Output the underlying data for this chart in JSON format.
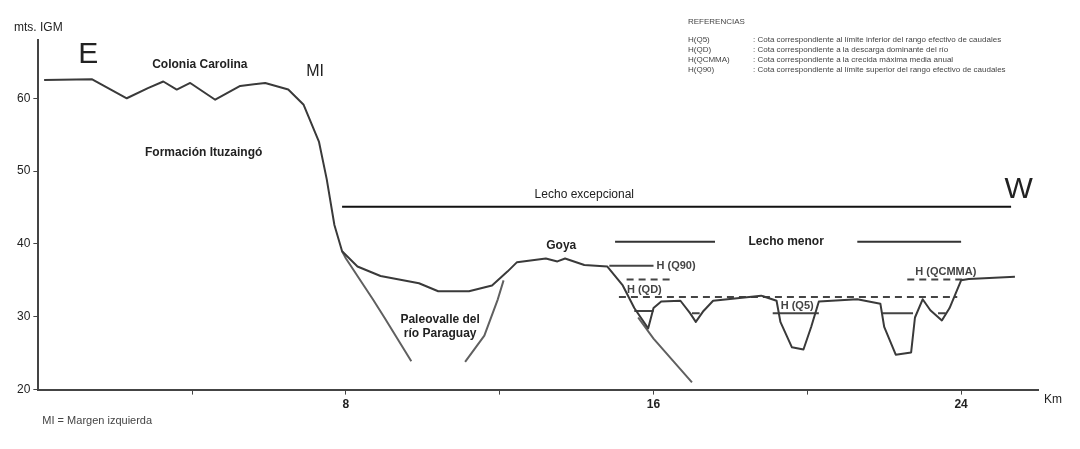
{
  "chart_data": {
    "type": "line",
    "ylabel": "mts. IGM",
    "xlabel": "Km",
    "xlim": [
      0,
      26
    ],
    "ylim": [
      20,
      68
    ],
    "xticks": [
      {
        "value": 4,
        "label": null
      },
      8,
      {
        "value": 12,
        "label": null
      },
      16,
      {
        "value": 20,
        "label": null
      },
      24
    ],
    "yticks": [
      20,
      30,
      40,
      50,
      60
    ],
    "grid": false,
    "legend": false,
    "marker": "none",
    "series": [
      {
        "color": "#3a3a3a",
        "x": [
          0.15,
          1.4,
          2.3,
          2.85,
          3.25,
          3.6,
          3.95,
          4.6,
          5.25,
          5.9,
          6.5,
          6.9,
          7.3,
          7.5,
          7.7,
          7.9,
          8.3,
          8.9,
          9.9,
          10.4,
          11.2,
          11.8,
          12.2,
          12.45,
          13.2,
          13.5,
          13.7,
          14.2,
          14.8,
          15.2,
          15.5,
          15.86,
          16.0,
          16.2,
          16.7,
          16.95,
          17.1,
          17.3,
          17.55,
          18.8,
          19.2,
          19.3,
          19.6,
          19.9,
          20.1,
          20.3,
          21.3,
          21.9,
          22.0,
          22.3,
          22.7,
          22.8,
          23.0,
          23.2,
          23.5,
          23.7,
          24.0,
          24.2,
          25.4
        ],
        "values": [
          62.5,
          62.6,
          60.0,
          61.4,
          62.3,
          61.2,
          62.1,
          59.8,
          61.7,
          62.1,
          61.2,
          59.1,
          54,
          48.9,
          42.6,
          39,
          36.9,
          35.6,
          34.6,
          33.5,
          33.5,
          34.3,
          36.2,
          37.5,
          38,
          37.6,
          38,
          37.1,
          36.9,
          34.3,
          31.2,
          28.4,
          31.2,
          32.1,
          32.2,
          30.5,
          29.3,
          30.8,
          32.2,
          32.9,
          32.2,
          29.3,
          25.8,
          25.5,
          28.6,
          32.1,
          32.4,
          31.8,
          28.6,
          24.8,
          25.1,
          29.9,
          32.4,
          30.9,
          29.5,
          31.2,
          35,
          35.2,
          35.5
        ]
      },
      {
        "color": "#606060",
        "x": [
          7.9,
          8.0,
          8.7,
          9.0,
          9.7
        ],
        "values": [
          39,
          38,
          32.4,
          29.9,
          23.9
        ]
      },
      {
        "color": "#606060",
        "x": [
          11.1,
          11.6,
          11.95,
          12.1
        ],
        "values": [
          23.8,
          27.4,
          32.4,
          35
        ]
      },
      {
        "color": "#606060",
        "x": [
          15.6,
          16.0,
          17.0
        ],
        "values": [
          29.9,
          27,
          21
        ]
      },
      {
        "name": "H (Q90)",
        "color": "#444444",
        "line_style": "solid",
        "x": [
          14.85,
          16.0
        ],
        "values": [
          37,
          37
        ]
      },
      {
        "name": "H (QCMMA)",
        "color": "#444444",
        "line_style": "dashed",
        "x": [
          15.3,
          16.5,
          19.5,
          22.6,
          24.1
        ],
        "values": [
          35.1,
          35.1,
          null,
          35.1,
          35.1
        ]
      },
      {
        "name": "H (QD)",
        "color": "#444444",
        "line_style": "dashed",
        "x": [
          15.1,
          23.9
        ],
        "values": [
          32.7,
          32.7
        ]
      },
      {
        "name": "H (Q5)",
        "color": "#444444",
        "line_style": "solid",
        "x": [
          15.5,
          16.0,
          16.5,
          17.0,
          17.2,
          18.0,
          19.1,
          20.3,
          21.0,
          21.95,
          22.75,
          23.1,
          23.4,
          23.6
        ],
        "values": [
          30.8,
          30.8,
          null,
          30.5,
          30.5,
          null,
          30.5,
          30.5,
          null,
          30.5,
          30.5,
          null,
          30.5,
          30.5
        ]
      },
      {
        "color": "#111111",
        "line_style": "solid",
        "x": [
          7.9,
          25.3
        ],
        "values": [
          45.1,
          45.1
        ]
      },
      {
        "color": "#333333",
        "line_style": "solid",
        "x": [
          15.0,
          17.6,
          19.7,
          21.3,
          24.0
        ],
        "values": [
          40.3,
          40.3,
          null,
          40.3,
          40.3
        ]
      }
    ],
    "annotations": [
      "E",
      "W",
      "Colonia Carolina",
      "MI",
      "Formación Ituzaingó",
      "Lecho excepcional",
      "Paleovalle del río Paraguay",
      "Goya",
      "Lecho menor",
      "REFERENCIAS",
      "H(Q5)  : Cota correspondiente al límite inferior del rango efectivo de caudales",
      "H(QD)  : Cota correspondiente a la descarga dominante del río",
      "H(QCMMA)  : Cota correspondiente a la crecida máxima media anual",
      "H(Q90)  : Cota correspondiente al límite superior del rango efectivo de caudales",
      "MI = Margen izquierda"
    ]
  }
}
